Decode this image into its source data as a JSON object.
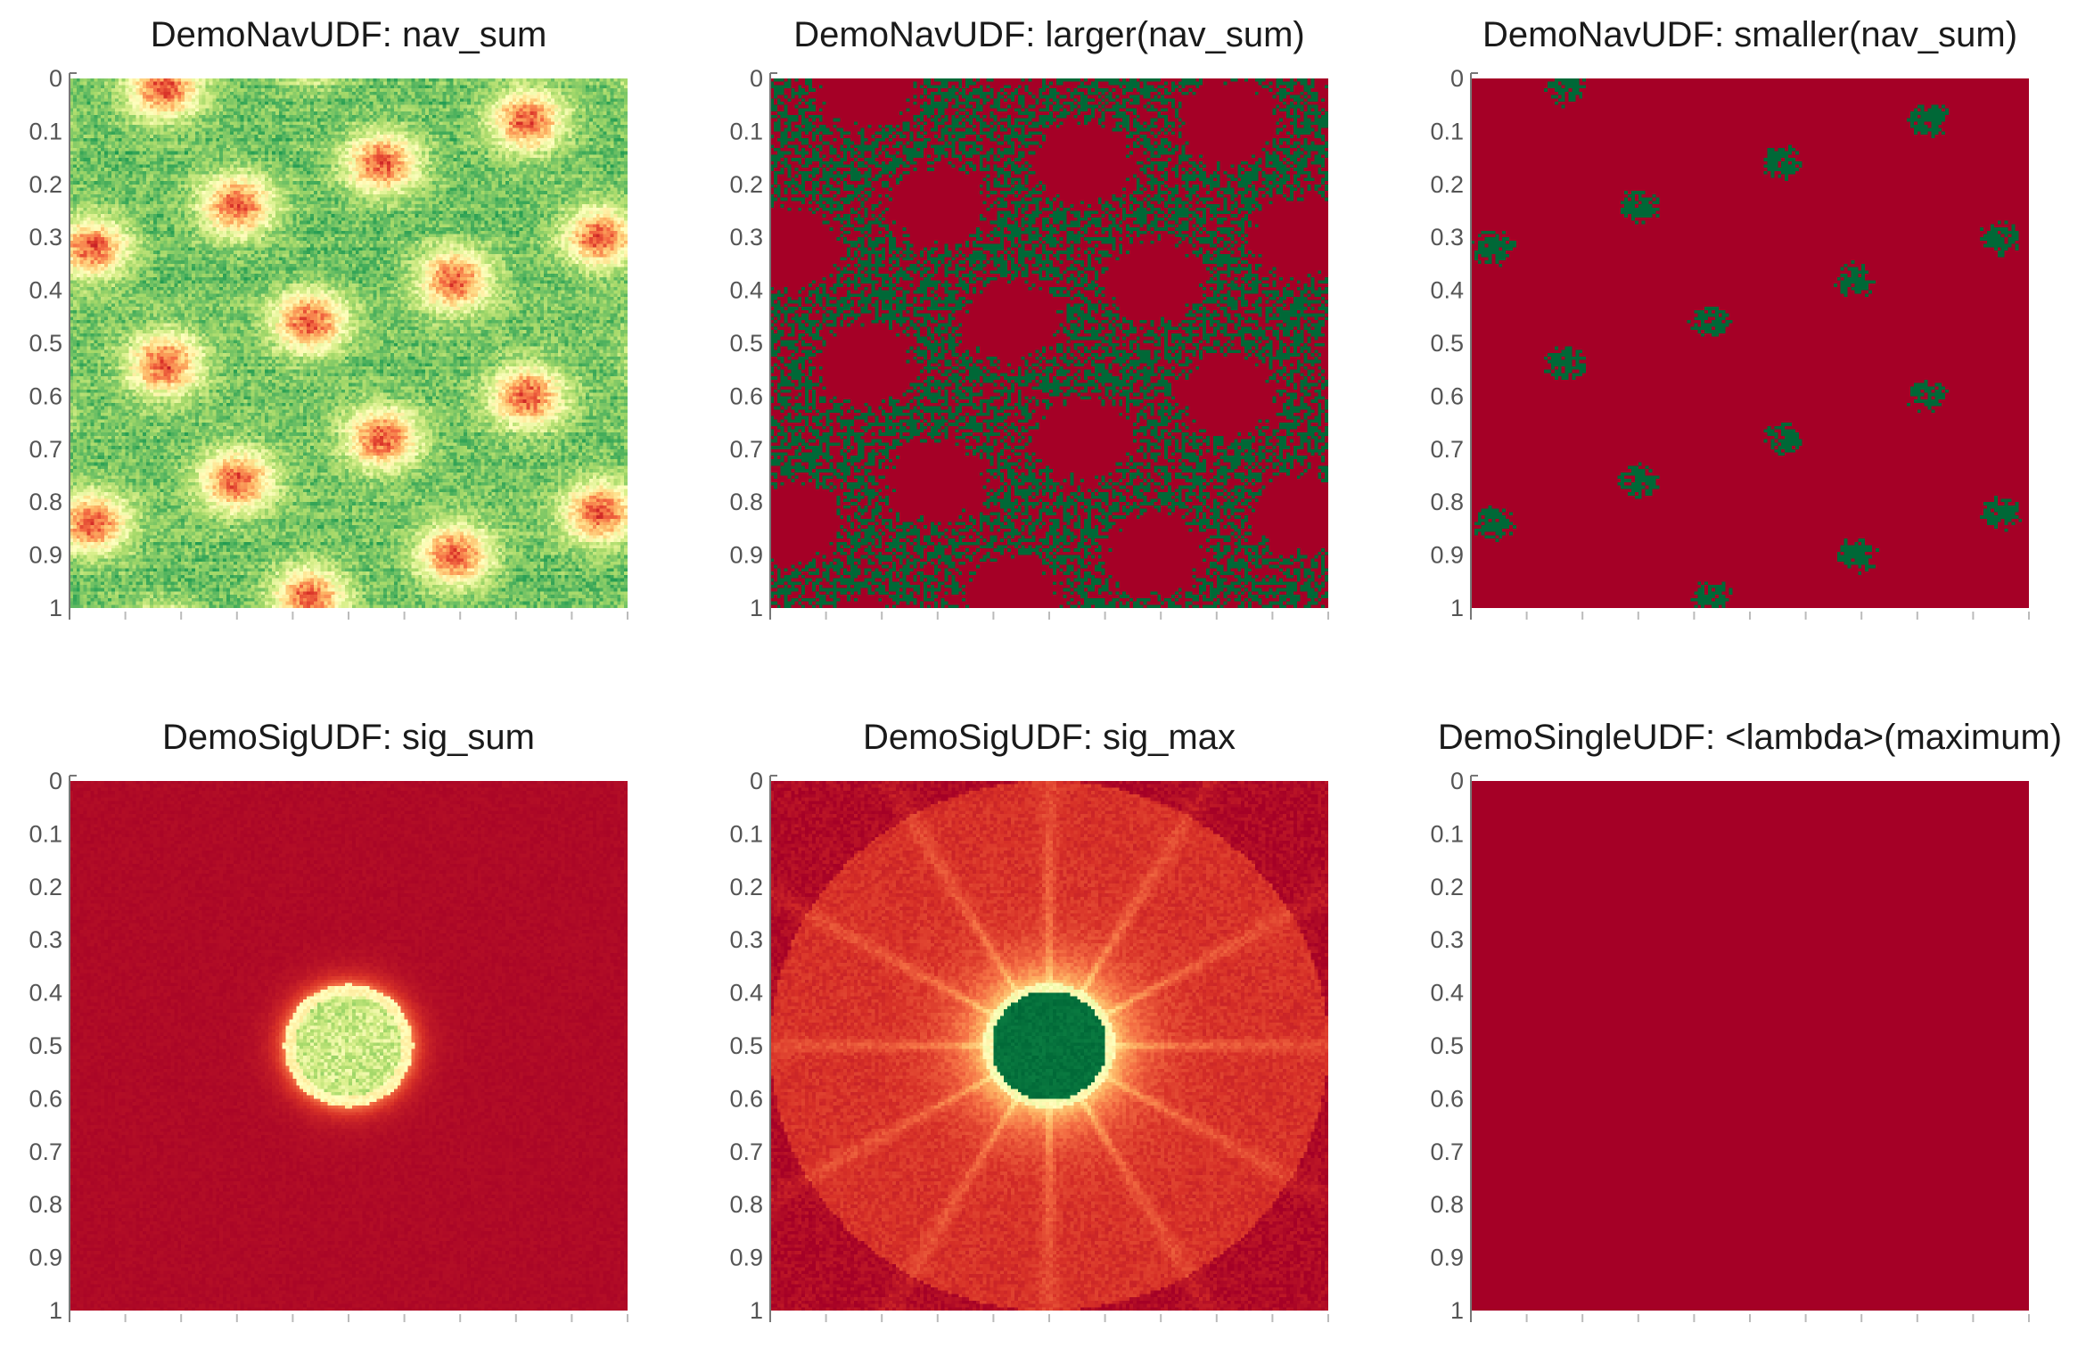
{
  "colors": {
    "colormap": "RdYlGn",
    "red": "#a50026",
    "orange": "#f46d43",
    "yellow": "#ffffbf",
    "light_green": "#a6d96a",
    "green": "#006837",
    "axis": "#777777",
    "tick_text": "#555555"
  },
  "chart_data": [
    {
      "type": "heatmap",
      "title": "DemoNavUDF: nav_sum",
      "y_ticks": [
        "0",
        "0.1",
        "0.2",
        "0.3",
        "0.4",
        "0.5",
        "0.6",
        "0.7",
        "0.8",
        "0.9",
        "1"
      ],
      "ylim": [
        0,
        1
      ],
      "colormap": "RdYlGn",
      "pattern": "hexagonal lattice of red/yellow blobs on green background",
      "x_tick_labels": false
    },
    {
      "type": "heatmap",
      "title": "DemoNavUDF: larger(nav_sum)",
      "y_ticks": [
        "0",
        "0.1",
        "0.2",
        "0.3",
        "0.4",
        "0.5",
        "0.6",
        "0.7",
        "0.8",
        "0.9",
        "1"
      ],
      "ylim": [
        0,
        1
      ],
      "colormap": "RdYlGn",
      "pattern": "binary mask: red regions with speckled green network between blobs",
      "x_tick_labels": false
    },
    {
      "type": "heatmap",
      "title": "DemoNavUDF: smaller(nav_sum)",
      "y_ticks": [
        "0",
        "0.1",
        "0.2",
        "0.3",
        "0.4",
        "0.5",
        "0.6",
        "0.7",
        "0.8",
        "0.9",
        "1"
      ],
      "ylim": [
        0,
        1
      ],
      "colormap": "RdYlGn",
      "pattern": "binary mask: mostly red with small green clusters at blob centers",
      "x_tick_labels": false
    },
    {
      "type": "heatmap",
      "title": "DemoSigUDF: sig_sum",
      "y_ticks": [
        "0",
        "0.1",
        "0.2",
        "0.3",
        "0.4",
        "0.5",
        "0.6",
        "0.7",
        "0.8",
        "0.9",
        "1"
      ],
      "ylim": [
        0,
        1
      ],
      "colormap": "RdYlGn",
      "pattern": "red background with central light disk (yellow rim, light green interior)",
      "x_tick_labels": false
    },
    {
      "type": "heatmap",
      "title": "DemoSigUDF: sig_max",
      "y_ticks": [
        "0",
        "0.1",
        "0.2",
        "0.3",
        "0.4",
        "0.5",
        "0.6",
        "0.7",
        "0.8",
        "0.9",
        "1"
      ],
      "ylim": [
        0,
        1
      ],
      "colormap": "RdYlGn",
      "pattern": "red background with radial streaks and central dark green disk with yellow halo",
      "x_tick_labels": false
    },
    {
      "type": "heatmap",
      "title": "DemoSingleUDF: <lambda>(maximum)",
      "y_ticks": [
        "0",
        "0.1",
        "0.2",
        "0.3",
        "0.4",
        "0.5",
        "0.6",
        "0.7",
        "0.8",
        "0.9",
        "1"
      ],
      "ylim": [
        0,
        1
      ],
      "colormap": "RdYlGn",
      "pattern": "uniform red",
      "x_tick_labels": false
    }
  ]
}
